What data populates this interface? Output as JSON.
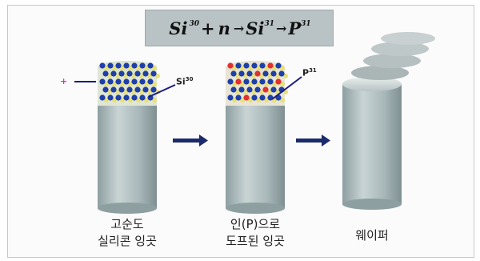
{
  "equation": {
    "si": "Si",
    "si_mass": "30",
    "plus": "+",
    "n": "n",
    "arrow1": "→",
    "si2": "Si",
    "si2_mass": "31",
    "arrow2": "→",
    "p": "P",
    "p_mass": "31"
  },
  "neutron_label": "+",
  "ingot1": {
    "atom_label": "Si",
    "atom_mass": "30",
    "caption_line1": "고순도",
    "caption_line2": "실리콘 잉곳"
  },
  "ingot2": {
    "atom_label": "P",
    "atom_mass": "31",
    "caption_line1": "인(P)으로",
    "caption_line2": "도프된 잉곳"
  },
  "wafer": {
    "caption": "웨이퍼"
  },
  "colors": {
    "cylinder": "#a8b7b8",
    "arrow": "#1b2a6b",
    "silicon_atom": "#1f3fa8",
    "phosphorus_atom": "#e03030",
    "bond": "#e8e07a"
  }
}
